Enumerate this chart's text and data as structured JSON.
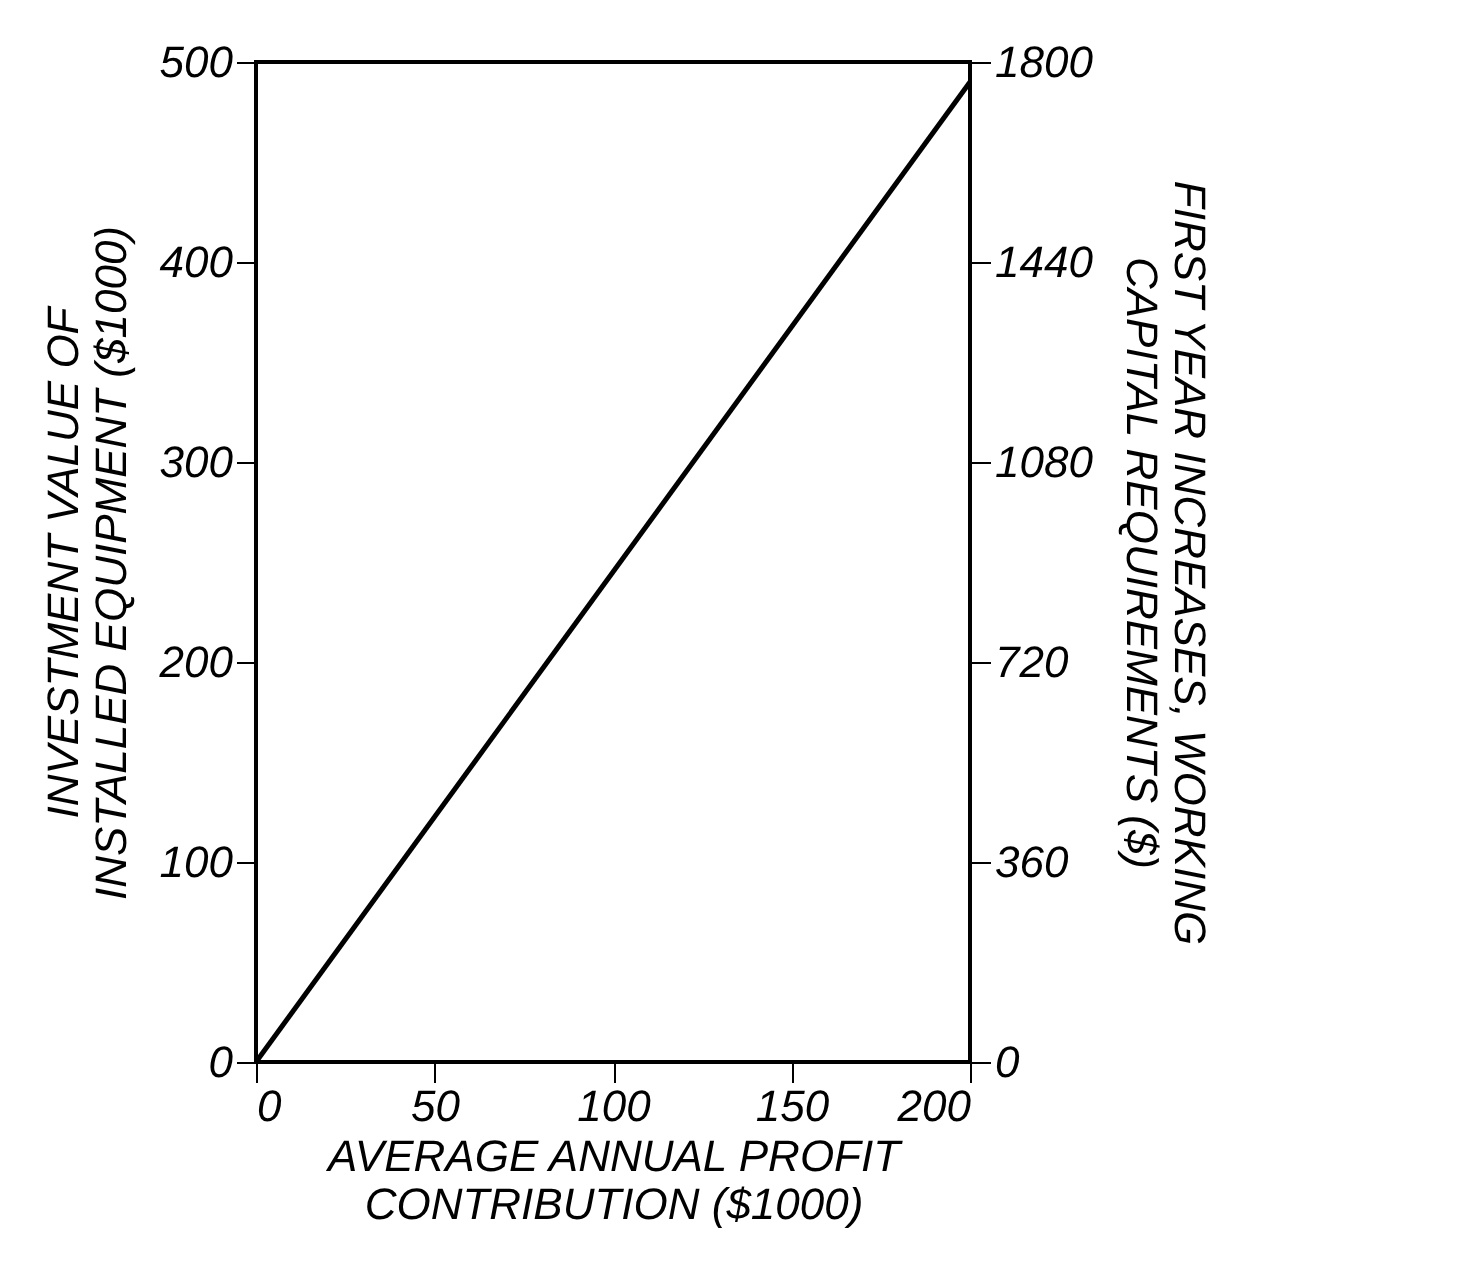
{
  "chart_data": {
    "type": "line",
    "xlabel": "AVERAGE ANNUAL PROFIT\nCONTRIBUTION ($1000)",
    "ylabel": "INVESTMENT VALUE OF\nINSTALLED EQUIPMENT ($1000)",
    "y2label": "FIRST YEAR INCREASES, WORKING\nCAPITAL REQUIREMENTS ($)",
    "x": [
      0,
      200
    ],
    "series": [
      {
        "color": "#000000",
        "values": [
          0,
          490
        ]
      }
    ],
    "xlim": [
      0,
      200
    ],
    "xticks": [
      0,
      50,
      100,
      150,
      200
    ],
    "ylim": [
      0,
      500
    ],
    "yticks": [
      0,
      100,
      200,
      300,
      400,
      500
    ],
    "y2lim": [
      0,
      1800
    ],
    "y2ticks": [
      0,
      360,
      720,
      1080,
      1440,
      1800
    ],
    "grid": false,
    "legend": false,
    "marker": "none",
    "line_style": "solid"
  }
}
